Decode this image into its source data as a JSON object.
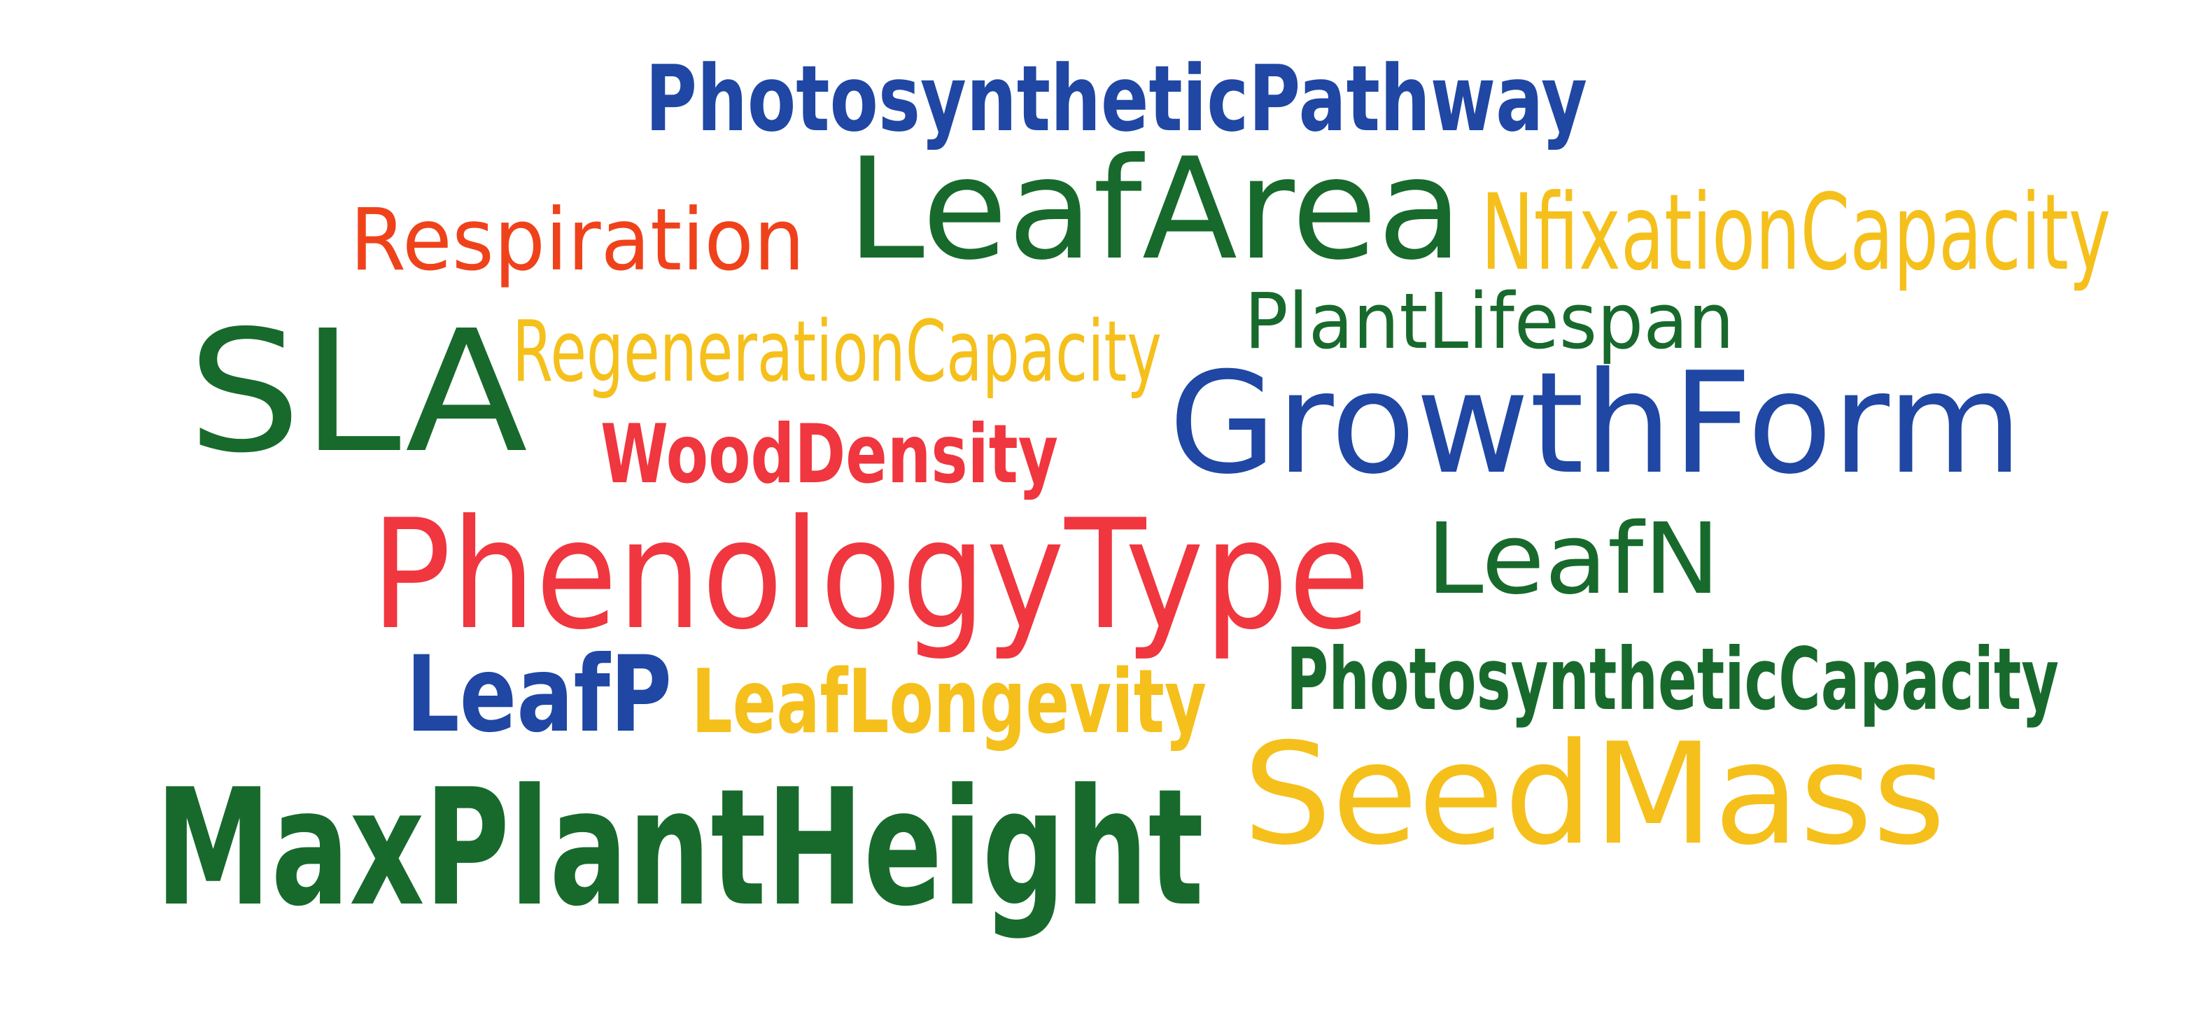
{
  "colors": {
    "blue": "#1f47a3",
    "green": "#176a2c",
    "red": "#f0363e",
    "orange": "#ef421b",
    "yellow": "#f5c01c",
    "background": "#ffffff"
  },
  "words": [
    {
      "text": "PhotosyntheticPathway",
      "color": "blue",
      "bold": true
    },
    {
      "text": "LeafArea",
      "color": "green",
      "bold": false
    },
    {
      "text": "Respiration",
      "color": "orange",
      "bold": false
    },
    {
      "text": "NfixationCapacity",
      "color": "yellow",
      "bold": false
    },
    {
      "text": "SLA",
      "color": "green",
      "bold": false
    },
    {
      "text": "RegenerationCapacity",
      "color": "yellow",
      "bold": false
    },
    {
      "text": "PlantLifespan",
      "color": "green",
      "bold": false
    },
    {
      "text": "GrowthForm",
      "color": "blue",
      "bold": false
    },
    {
      "text": "WoodDensity",
      "color": "red",
      "bold": true
    },
    {
      "text": "PhenologyType",
      "color": "red",
      "bold": false
    },
    {
      "text": "LeafN",
      "color": "green",
      "bold": false
    },
    {
      "text": "LeafP",
      "color": "blue",
      "bold": true
    },
    {
      "text": "LeafLongevity",
      "color": "yellow",
      "bold": true
    },
    {
      "text": "PhotosyntheticCapacity",
      "color": "green",
      "bold": true
    },
    {
      "text": "SeedMass",
      "color": "yellow",
      "bold": false
    },
    {
      "text": "MaxPlantHeight",
      "color": "green",
      "bold": true
    }
  ]
}
